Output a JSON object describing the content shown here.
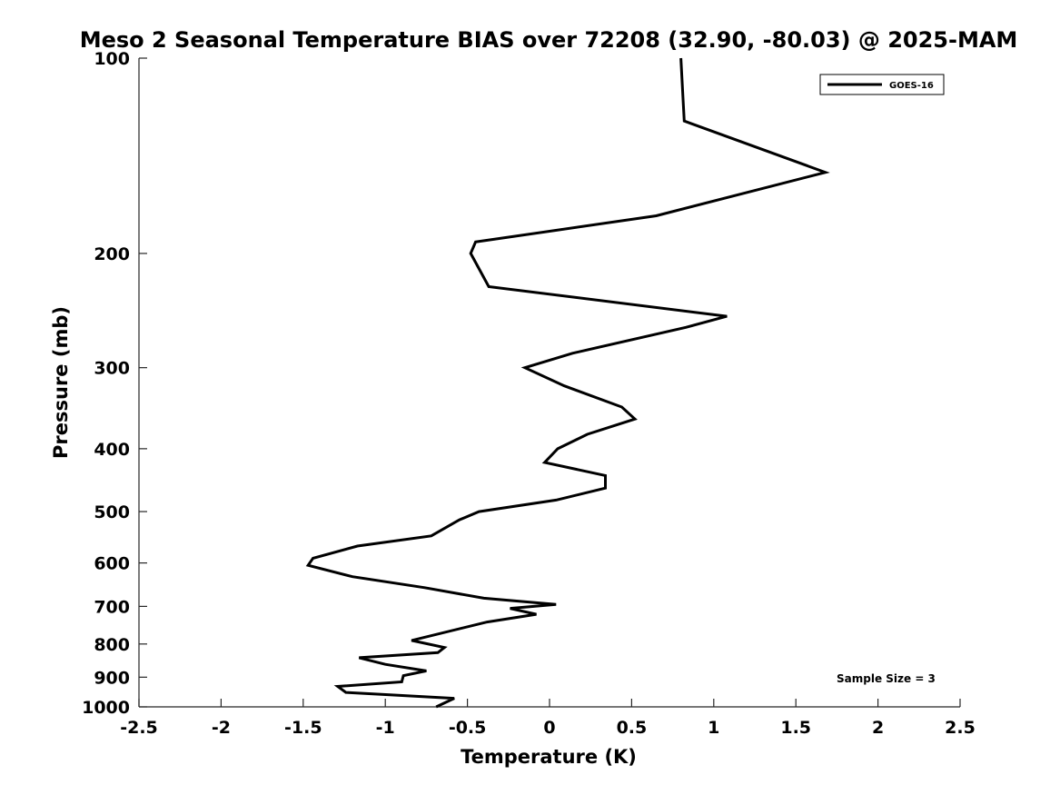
{
  "chart_data": {
    "type": "line",
    "title": "Meso 2 Seasonal Temperature BIAS over 72208 (32.90, -80.03) @ 2025-MAM",
    "xlabel": "Temperature (K)",
    "ylabel": "Pressure (mb)",
    "xlim": [
      -2.5,
      2.5
    ],
    "ylim": [
      100,
      1000
    ],
    "y_scale": "log",
    "y_reversed": true,
    "x_ticks": [
      "-2.5",
      "-2",
      "-1.5",
      "-1",
      "-0.5",
      "0",
      "0.5",
      "1",
      "1.5",
      "2",
      "2.5"
    ],
    "y_ticks": [
      "100",
      "200",
      "300",
      "400",
      "500",
      "600",
      "700",
      "800",
      "900",
      "1000"
    ],
    "grid": false,
    "legend_position": "top-right",
    "annotation": "Sample Size = 3",
    "series": [
      {
        "name": "GOES-16",
        "color": "#000000",
        "points": [
          {
            "x": 0.8,
            "p": 100
          },
          {
            "x": 0.82,
            "p": 125
          },
          {
            "x": 1.68,
            "p": 150
          },
          {
            "x": 0.65,
            "p": 175
          },
          {
            "x": -0.45,
            "p": 192
          },
          {
            "x": -0.48,
            "p": 200
          },
          {
            "x": -0.37,
            "p": 225
          },
          {
            "x": 1.08,
            "p": 250
          },
          {
            "x": 0.83,
            "p": 260
          },
          {
            "x": 0.14,
            "p": 285
          },
          {
            "x": -0.15,
            "p": 300
          },
          {
            "x": 0.09,
            "p": 320
          },
          {
            "x": 0.44,
            "p": 345
          },
          {
            "x": 0.52,
            "p": 360
          },
          {
            "x": 0.23,
            "p": 380
          },
          {
            "x": 0.05,
            "p": 400
          },
          {
            "x": -0.03,
            "p": 420
          },
          {
            "x": 0.34,
            "p": 440
          },
          {
            "x": 0.34,
            "p": 460
          },
          {
            "x": 0.04,
            "p": 480
          },
          {
            "x": -0.43,
            "p": 500
          },
          {
            "x": -0.55,
            "p": 515
          },
          {
            "x": -0.72,
            "p": 545
          },
          {
            "x": -1.17,
            "p": 565
          },
          {
            "x": -1.44,
            "p": 590
          },
          {
            "x": -1.47,
            "p": 605
          },
          {
            "x": -1.2,
            "p": 630
          },
          {
            "x": -0.76,
            "p": 655
          },
          {
            "x": -0.4,
            "p": 680
          },
          {
            "x": 0.04,
            "p": 695
          },
          {
            "x": -0.24,
            "p": 705
          },
          {
            "x": -0.08,
            "p": 720
          },
          {
            "x": -0.38,
            "p": 740
          },
          {
            "x": -0.84,
            "p": 790
          },
          {
            "x": -0.64,
            "p": 810
          },
          {
            "x": -0.68,
            "p": 825
          },
          {
            "x": -1.16,
            "p": 840
          },
          {
            "x": -1.0,
            "p": 860
          },
          {
            "x": -0.75,
            "p": 880
          },
          {
            "x": -0.89,
            "p": 895
          },
          {
            "x": -0.9,
            "p": 915
          },
          {
            "x": -1.29,
            "p": 930
          },
          {
            "x": -1.24,
            "p": 950
          },
          {
            "x": -0.58,
            "p": 970
          },
          {
            "x": -0.69,
            "p": 1000
          }
        ]
      }
    ]
  }
}
